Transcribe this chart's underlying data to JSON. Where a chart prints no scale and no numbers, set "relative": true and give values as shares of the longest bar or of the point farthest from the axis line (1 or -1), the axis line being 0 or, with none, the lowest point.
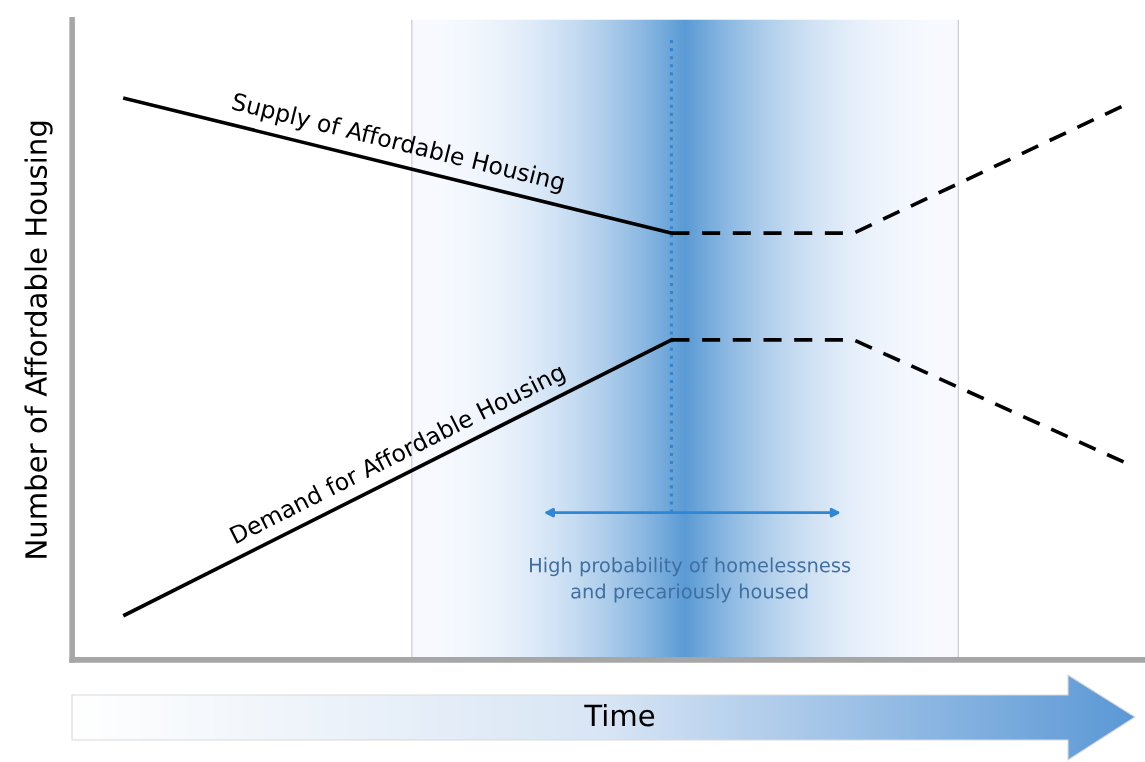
{
  "chart_data": {
    "type": "line",
    "relative": true,
    "xlabel": "Time",
    "ylabel": "Number of Affordable Housing",
    "marker": "none",
    "categories": [
      null,
      null,
      null,
      null,
      null,
      null,
      null,
      null,
      null,
      null,
      null,
      null
    ],
    "series": [
      {
        "name": "Supply of Affordable Housing",
        "color": "#000000",
        "line_style": "solid",
        "values": [
          1.0,
          null,
          null,
          null,
          null,
          null,
          0.76,
          null,
          null,
          null,
          null,
          null
        ]
      },
      {
        "color": "#000000",
        "line_style": "dashed",
        "values": [
          null,
          null,
          null,
          null,
          null,
          null,
          0.76,
          null,
          0.76,
          null,
          null,
          0.99
        ]
      },
      {
        "name": "Demand for Affordable Housing",
        "color": "#000000",
        "line_style": "solid",
        "values": [
          0.08,
          null,
          null,
          null,
          null,
          null,
          0.57,
          null,
          null,
          null,
          null,
          null
        ]
      },
      {
        "color": "#000000",
        "line_style": "dashed",
        "values": [
          null,
          null,
          null,
          null,
          null,
          null,
          0.57,
          null,
          0.57,
          null,
          null,
          0.35
        ]
      }
    ],
    "annotations": [
      "High probability of homelessness\nand precariously housed"
    ]
  }
}
